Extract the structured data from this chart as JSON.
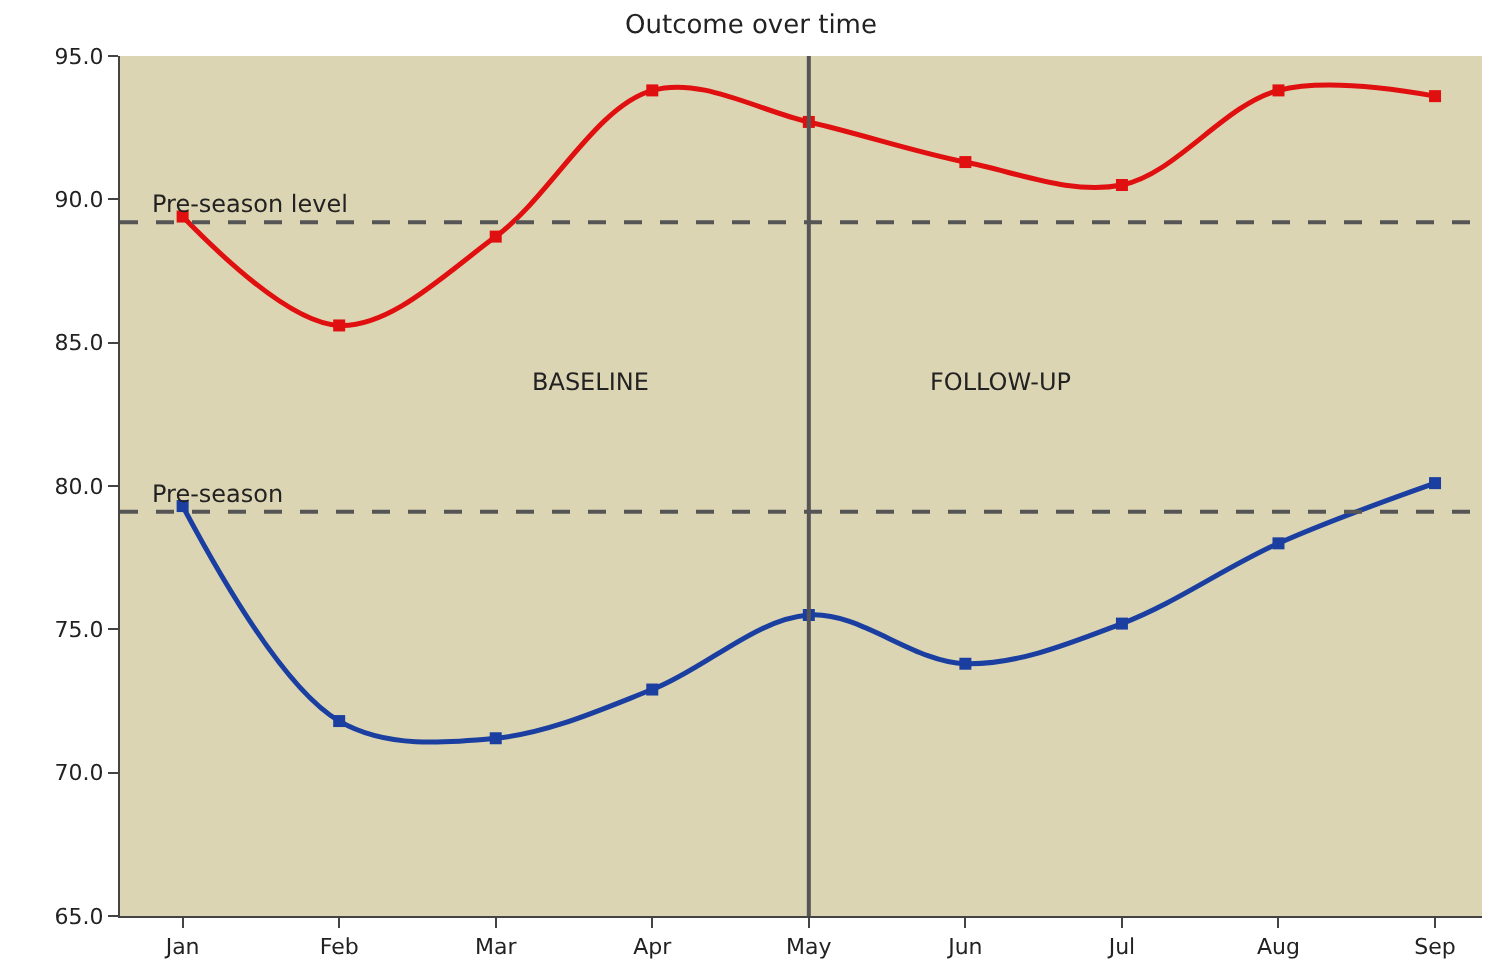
{
  "chart_data": {
    "type": "line",
    "title": "Outcome over time",
    "categories": [
      "Jan",
      "Feb",
      "Mar",
      "Apr",
      "May",
      "Jun",
      "Jul",
      "Aug",
      "Sep"
    ],
    "series": [
      {
        "color": "#e01010",
        "values": [
          89.4,
          85.6,
          88.7,
          93.8,
          92.7,
          91.3,
          90.5,
          93.8,
          93.6
        ]
      },
      {
        "color": "#1a3fa0",
        "values": [
          79.3,
          71.8,
          71.2,
          72.9,
          75.5,
          73.8,
          75.2,
          78.0,
          80.1
        ]
      }
    ],
    "ylim": [
      65,
      95
    ],
    "yticks": [
      {
        "value": 65,
        "label": "65.0"
      },
      {
        "value": 70,
        "label": "70.0"
      },
      {
        "value": 75,
        "label": "75.0"
      },
      {
        "value": 80,
        "label": "80.0"
      },
      {
        "value": 85,
        "label": "85.0"
      },
      {
        "value": 90,
        "label": "90.0"
      },
      {
        "value": 95,
        "label": "95.0"
      }
    ],
    "ref_lines": [
      {
        "axis": "y",
        "value": 89.2,
        "label": "Pre-season level",
        "line_style": "dashed",
        "color": "#555555"
      },
      {
        "axis": "y",
        "value": 79.1,
        "label": "Pre-season",
        "line_style": "dashed",
        "color": "#555555"
      },
      {
        "axis": "x",
        "value": "May",
        "color": "#555555",
        "line_style": "solid"
      }
    ],
    "annotations": [
      "BASELINE",
      "FOLLOW-UP"
    ],
    "marker": "square",
    "grid": false,
    "legend": false
  }
}
